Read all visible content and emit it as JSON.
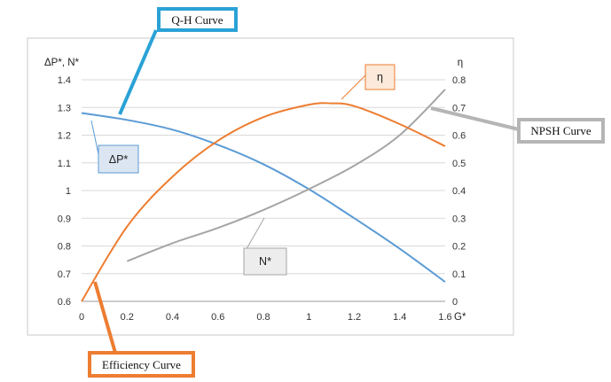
{
  "chart_data": {
    "type": "line",
    "title": "",
    "xlabel": "G*",
    "ylabel_left": "ΔP*, N*",
    "ylabel_right": "η",
    "xlim": [
      0,
      1.6
    ],
    "ylim_left": [
      0.6,
      1.4
    ],
    "ylim_right": [
      0,
      0.8
    ],
    "x_ticks": [
      "0",
      "0.2",
      "0.4",
      "0.6",
      "0.8",
      "1",
      "1.2",
      "1.4",
      "1.6"
    ],
    "y_ticks_left": [
      "0.6",
      "0.7",
      "0.8",
      "0.9",
      "1",
      "1.1",
      "1.2",
      "1.3",
      "1.4"
    ],
    "y_ticks_right": [
      "0",
      "0.1",
      "0.2",
      "0.3",
      "0.4",
      "0.5",
      "0.6",
      "0.7",
      "0.8"
    ],
    "grid": "horizontal",
    "series": [
      {
        "name": "ΔP*",
        "axis": "left",
        "color": "#5b9bd5",
        "x": [
          0,
          0.2,
          0.4,
          0.6,
          0.8,
          1.0,
          1.2,
          1.4,
          1.6
        ],
        "y": [
          1.28,
          1.255,
          1.22,
          1.165,
          1.095,
          1.005,
          0.9,
          0.79,
          0.67
        ]
      },
      {
        "name": "N*",
        "axis": "left",
        "color": "#a5a5a5",
        "x": [
          0.2,
          0.4,
          0.6,
          0.8,
          1.0,
          1.2,
          1.4,
          1.6
        ],
        "y": [
          0.745,
          0.81,
          0.865,
          0.93,
          1.005,
          1.09,
          1.2,
          1.365
        ]
      },
      {
        "name": "η",
        "axis": "right",
        "color": "#ed7d31",
        "x": [
          0,
          0.2,
          0.4,
          0.6,
          0.8,
          1.0,
          1.1,
          1.2,
          1.4,
          1.6
        ],
        "y": [
          0.0,
          0.27,
          0.45,
          0.58,
          0.665,
          0.71,
          0.715,
          0.705,
          0.64,
          0.56
        ]
      }
    ],
    "annotations": {
      "qh": "Q-H Curve",
      "efficiency": "Efficiency Curve",
      "npsh": "NPSH Curve",
      "dp_label": "ΔP*",
      "n_label": "N*",
      "eta_label": "η"
    },
    "colors": {
      "qh_box": "#2aa2d6",
      "eff_box": "#ed7d31",
      "npsh_box": "#b5b5b5",
      "dp_fill": "#dce6f2",
      "dp_border": "#5b9bd5",
      "n_fill": "#ededed",
      "n_border": "#a5a5a5",
      "eta_fill": "#fde9d9",
      "eta_border": "#ed7d31"
    }
  }
}
